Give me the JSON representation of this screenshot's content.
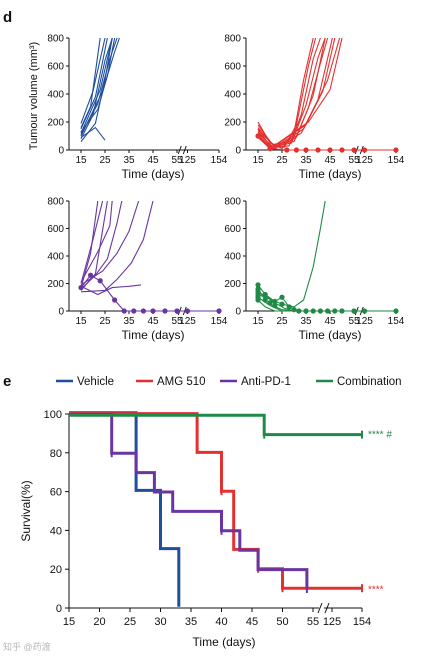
{
  "panel_d": {
    "label": "d",
    "ylabel": "Tumour volume (mm³)",
    "xlabel": "Time (days)"
  },
  "panel_e": {
    "label": "e",
    "ylabel": "Survival(%)",
    "xlabel": "Time (days)"
  },
  "watermark": "知乎 @药渡",
  "chart_data": [
    {
      "panel": "d",
      "type": "line",
      "group": "Vehicle",
      "color": "#1f4e9c",
      "ylim": [
        0,
        800
      ],
      "yticks": [
        0,
        200,
        400,
        600,
        800
      ],
      "xticks": [
        "15",
        "25",
        "35",
        "45",
        "55",
        "125",
        "154"
      ],
      "lines": [
        [
          [
            15,
            110
          ],
          [
            22,
            330
          ],
          [
            27,
            650
          ],
          [
            30,
            800
          ]
        ],
        [
          [
            15,
            150
          ],
          [
            21,
            380
          ],
          [
            26,
            800
          ]
        ],
        [
          [
            15,
            190
          ],
          [
            20,
            420
          ],
          [
            25,
            800
          ]
        ],
        [
          [
            15,
            80
          ],
          [
            20,
            250
          ],
          [
            25,
            640
          ],
          [
            28,
            800
          ]
        ],
        [
          [
            15,
            120
          ],
          [
            23,
            430
          ],
          [
            28,
            800
          ]
        ],
        [
          [
            15,
            100
          ],
          [
            24,
            420
          ],
          [
            29,
            700
          ],
          [
            31,
            800
          ]
        ],
        [
          [
            15,
            160
          ],
          [
            19,
            310
          ],
          [
            23,
            800
          ]
        ],
        [
          [
            15,
            90
          ],
          [
            21,
            160
          ],
          [
            25,
            70
          ]
        ],
        [
          [
            15,
            130
          ],
          [
            22,
            290
          ],
          [
            26,
            530
          ],
          [
            29,
            800
          ]
        ],
        [
          [
            15,
            60
          ],
          [
            21,
            190
          ],
          [
            25,
            500
          ],
          [
            28,
            800
          ]
        ]
      ]
    },
    {
      "panel": "d",
      "type": "line",
      "group": "AMG 510",
      "color": "#e33030",
      "ylim": [
        0,
        800
      ],
      "yticks": [
        0,
        200,
        400,
        600,
        800
      ],
      "xticks": [
        "15",
        "25",
        "35",
        "45",
        "55",
        "125",
        "154"
      ],
      "lines": [
        [
          [
            15,
            200
          ],
          [
            20,
            50
          ],
          [
            25,
            10
          ],
          [
            30,
            120
          ],
          [
            34,
            500
          ],
          [
            38,
            800
          ]
        ],
        [
          [
            15,
            150
          ],
          [
            20,
            30
          ],
          [
            26,
            20
          ],
          [
            31,
            180
          ],
          [
            36,
            600
          ],
          [
            39,
            800
          ]
        ],
        [
          [
            15,
            130
          ],
          [
            21,
            20
          ],
          [
            28,
            30
          ],
          [
            33,
            250
          ],
          [
            38,
            650
          ],
          [
            41,
            800
          ]
        ],
        [
          [
            15,
            100
          ],
          [
            20,
            20
          ],
          [
            29,
            50
          ],
          [
            35,
            320
          ],
          [
            40,
            660
          ],
          [
            43,
            800
          ]
        ],
        [
          [
            15,
            180
          ],
          [
            21,
            40
          ],
          [
            30,
            60
          ],
          [
            36,
            300
          ],
          [
            41,
            620
          ],
          [
            44,
            800
          ]
        ],
        [
          [
            15,
            120
          ],
          [
            22,
            10
          ],
          [
            31,
            90
          ],
          [
            38,
            390
          ],
          [
            43,
            800
          ]
        ],
        [
          [
            15,
            160
          ],
          [
            22,
            20
          ],
          [
            33,
            120
          ],
          [
            40,
            360
          ],
          [
            46,
            800
          ]
        ],
        [
          [
            15,
            110
          ],
          [
            21,
            10
          ],
          [
            34,
            150
          ],
          [
            42,
            420
          ],
          [
            47,
            800
          ]
        ],
        [
          [
            15,
            140
          ],
          [
            22,
            30
          ],
          [
            35,
            180
          ],
          [
            44,
            500
          ],
          [
            49,
            800
          ]
        ],
        [
          [
            15,
            90
          ],
          [
            20,
            10
          ],
          [
            36,
            200
          ],
          [
            45,
            430
          ],
          [
            48,
            650
          ],
          [
            50,
            800
          ]
        ],
        [
          [
            15,
            100
          ],
          [
            20,
            10
          ],
          [
            27,
            0
          ],
          [
            35,
            0
          ],
          [
            45,
            0
          ],
          [
            55,
            0
          ],
          [
            125,
            0
          ],
          [
            154,
            0
          ]
        ]
      ],
      "marker_points": [
        [
          15,
          100
        ],
        [
          20,
          10
        ],
        [
          27,
          0
        ],
        [
          31,
          0
        ],
        [
          35,
          0
        ],
        [
          40,
          0
        ],
        [
          45,
          0
        ],
        [
          50,
          0
        ],
        [
          55,
          0
        ],
        [
          125,
          0
        ],
        [
          154,
          0
        ]
      ]
    },
    {
      "panel": "d",
      "type": "line",
      "group": "Anti-PD-1",
      "color": "#6a35a0",
      "ylim": [
        0,
        800
      ],
      "yticks": [
        0,
        200,
        400,
        600,
        800
      ],
      "xticks": [
        "15",
        "25",
        "35",
        "45",
        "55",
        "125",
        "154"
      ],
      "lines": [
        [
          [
            15,
            170
          ],
          [
            19,
            420
          ],
          [
            22,
            800
          ]
        ],
        [
          [
            15,
            200
          ],
          [
            20,
            520
          ],
          [
            24,
            800
          ]
        ],
        [
          [
            15,
            150
          ],
          [
            21,
            270
          ],
          [
            26,
            800
          ]
        ],
        [
          [
            15,
            210
          ],
          [
            22,
            430
          ],
          [
            27,
            620
          ],
          [
            28,
            800
          ]
        ],
        [
          [
            15,
            160
          ],
          [
            21,
            260
          ],
          [
            26,
            380
          ],
          [
            30,
            640
          ],
          [
            32,
            800
          ]
        ],
        [
          [
            15,
            190
          ],
          [
            24,
            290
          ],
          [
            30,
            420
          ],
          [
            35,
            580
          ],
          [
            39,
            800
          ]
        ],
        [
          [
            15,
            140
          ],
          [
            25,
            150
          ],
          [
            30,
            230
          ],
          [
            36,
            350
          ],
          [
            41,
            520
          ],
          [
            45,
            800
          ]
        ],
        [
          [
            15,
            180
          ],
          [
            22,
            120
          ],
          [
            28,
            170
          ],
          [
            35,
            180
          ],
          [
            40,
            190
          ]
        ],
        [
          [
            15,
            170
          ],
          [
            19,
            260
          ],
          [
            23,
            220
          ],
          [
            29,
            80
          ],
          [
            33,
            0
          ],
          [
            40,
            0
          ],
          [
            50,
            0
          ],
          [
            55,
            0
          ],
          [
            125,
            0
          ],
          [
            154,
            0
          ]
        ]
      ],
      "marker_points": [
        [
          15,
          170
        ],
        [
          19,
          260
        ],
        [
          23,
          220
        ],
        [
          29,
          80
        ],
        [
          33,
          0
        ],
        [
          37,
          0
        ],
        [
          41,
          0
        ],
        [
          45,
          0
        ],
        [
          50,
          0
        ],
        [
          55,
          0
        ],
        [
          125,
          0
        ],
        [
          154,
          0
        ]
      ]
    },
    {
      "panel": "d",
      "type": "line",
      "group": "Combination",
      "color": "#1e8a45",
      "ylim": [
        0,
        800
      ],
      "yticks": [
        0,
        200,
        400,
        600,
        800
      ],
      "xticks": [
        "15",
        "25",
        "35",
        "45",
        "55",
        "125",
        "154"
      ],
      "lines": [
        [
          [
            15,
            120
          ],
          [
            25,
            50
          ],
          [
            30,
            30
          ],
          [
            34,
            80
          ],
          [
            38,
            320
          ],
          [
            41,
            600
          ],
          [
            43,
            800
          ]
        ],
        [
          [
            15,
            190
          ],
          [
            18,
            120
          ],
          [
            22,
            70
          ],
          [
            25,
            100
          ],
          [
            28,
            30
          ],
          [
            32,
            0
          ],
          [
            40,
            0
          ],
          [
            55,
            0
          ],
          [
            125,
            0
          ],
          [
            154,
            0
          ]
        ],
        [
          [
            15,
            160
          ],
          [
            18,
            80
          ],
          [
            21,
            40
          ],
          [
            25,
            10
          ],
          [
            30,
            0
          ],
          [
            55,
            0
          ],
          [
            125,
            0
          ],
          [
            154,
            0
          ]
        ],
        [
          [
            15,
            140
          ],
          [
            19,
            100
          ],
          [
            22,
            60
          ],
          [
            26,
            20
          ],
          [
            30,
            0
          ],
          [
            55,
            0
          ],
          [
            154,
            0
          ]
        ],
        [
          [
            15,
            100
          ],
          [
            20,
            40
          ],
          [
            25,
            0
          ],
          [
            30,
            0
          ],
          [
            55,
            0
          ],
          [
            154,
            0
          ]
        ],
        [
          [
            15,
            80
          ],
          [
            18,
            30
          ],
          [
            22,
            0
          ],
          [
            55,
            0
          ],
          [
            154,
            0
          ]
        ]
      ],
      "marker_points": [
        [
          15,
          190
        ],
        [
          15,
          160
        ],
        [
          15,
          140
        ],
        [
          15,
          120
        ],
        [
          15,
          100
        ],
        [
          15,
          80
        ],
        [
          18,
          120
        ],
        [
          18,
          80
        ],
        [
          20,
          60
        ],
        [
          22,
          70
        ],
        [
          22,
          40
        ],
        [
          25,
          100
        ],
        [
          25,
          50
        ],
        [
          28,
          30
        ],
        [
          30,
          10
        ],
        [
          32,
          0
        ],
        [
          35,
          0
        ],
        [
          38,
          0
        ],
        [
          41,
          0
        ],
        [
          44,
          0
        ],
        [
          47,
          0
        ],
        [
          50,
          0
        ],
        [
          55,
          0
        ],
        [
          125,
          0
        ],
        [
          154,
          0
        ]
      ]
    },
    {
      "panel": "e",
      "type": "line",
      "subtype": "kaplan-meier",
      "xlabel": "Time (days)",
      "ylabel": "Survival(%)",
      "ylim": [
        0,
        100
      ],
      "yticks": [
        0,
        20,
        40,
        60,
        80,
        100
      ],
      "xticks": [
        "15",
        "20",
        "25",
        "30",
        "35",
        "40",
        "45",
        "50",
        "55",
        "125",
        "154"
      ],
      "legend_position": "top",
      "series": [
        {
          "name": "Vehicle",
          "color": "#1f4e9c",
          "steps": [
            [
              15,
              100
            ],
            [
              26,
              100
            ],
            [
              26,
              60
            ],
            [
              30,
              60
            ],
            [
              30,
              30
            ],
            [
              33,
              30
            ],
            [
              33,
              0
            ]
          ],
          "censor": []
        },
        {
          "name": "AMG 510",
          "color": "#e33030",
          "steps": [
            [
              15,
              100
            ],
            [
              36,
              100
            ],
            [
              36,
              80
            ],
            [
              40,
              80
            ],
            [
              40,
              60
            ],
            [
              42,
              60
            ],
            [
              42,
              30
            ],
            [
              46,
              30
            ],
            [
              46,
              20
            ],
            [
              50,
              20
            ],
            [
              50,
              10
            ],
            [
              154,
              10
            ]
          ],
          "censor": [
            [
              40,
              60
            ],
            [
              46,
              20
            ],
            [
              50,
              10
            ],
            [
              154,
              10
            ]
          ],
          "annotation": "****"
        },
        {
          "name": "Anti-PD-1",
          "color": "#6a35a0",
          "steps": [
            [
              15,
              100
            ],
            [
              22,
              100
            ],
            [
              22,
              80
            ],
            [
              26,
              80
            ],
            [
              26,
              70
            ],
            [
              29,
              70
            ],
            [
              29,
              60
            ],
            [
              32,
              60
            ],
            [
              32,
              50
            ],
            [
              40,
              50
            ],
            [
              40,
              40
            ],
            [
              43,
              40
            ],
            [
              43,
              30
            ],
            [
              46,
              30
            ],
            [
              46,
              20
            ],
            [
              54,
              20
            ],
            [
              54,
              10
            ]
          ],
          "censor": [
            [
              22,
              80
            ],
            [
              40,
              40
            ],
            [
              54,
              10
            ]
          ]
        },
        {
          "name": "Combination",
          "color": "#1e8a45",
          "steps": [
            [
              15,
              100
            ],
            [
              47,
              100
            ],
            [
              47,
              90
            ],
            [
              154,
              90
            ]
          ],
          "censor": [
            [
              47,
              90
            ],
            [
              154,
              90
            ]
          ],
          "annotation": "**** #"
        }
      ]
    }
  ]
}
